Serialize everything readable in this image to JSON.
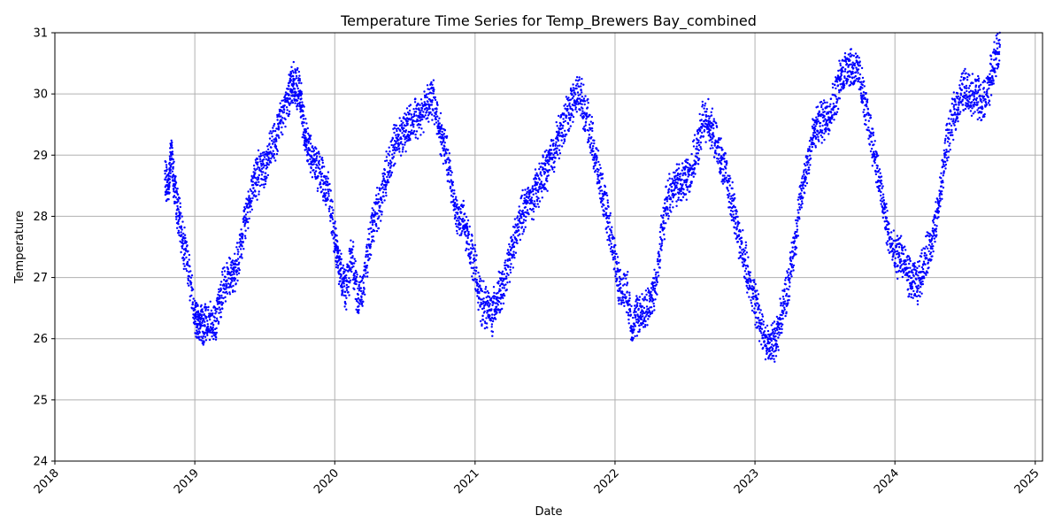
{
  "chart_data": {
    "type": "scatter",
    "title": "Temperature Time Series for Temp_Brewers Bay_combined",
    "xlabel": "Date",
    "ylabel": "Temperature",
    "x_range": [
      "2018-01-01",
      "2025-01-20"
    ],
    "ylim": [
      24,
      31
    ],
    "x_ticks": [
      "2018",
      "2019",
      "2020",
      "2021",
      "2022",
      "2023",
      "2024",
      "2025"
    ],
    "y_ticks": [
      24,
      25,
      26,
      27,
      28,
      29,
      30,
      31
    ],
    "grid": true,
    "marker_color": "#0000ff",
    "series": [
      {
        "x": [
          "2018-10-15",
          "2018-10-25",
          "2018-11-01",
          "2018-11-10",
          "2018-11-20",
          "2018-12-01",
          "2018-12-15",
          "2019-01-01",
          "2019-01-10",
          "2019-01-20",
          "2019-02-01",
          "2019-02-15",
          "2019-03-01",
          "2019-03-15",
          "2019-04-01",
          "2019-04-15",
          "2019-05-01",
          "2019-05-15",
          "2019-06-01",
          "2019-06-15",
          "2019-07-01",
          "2019-07-15",
          "2019-08-01",
          "2019-08-15",
          "2019-09-01",
          "2019-09-10",
          "2019-09-20",
          "2019-10-01",
          "2019-10-10",
          "2019-10-20",
          "2019-11-01",
          "2019-11-15",
          "2019-12-01",
          "2019-12-15",
          "2020-01-01",
          "2020-01-10",
          "2020-01-20",
          "2020-02-01",
          "2020-02-15",
          "2020-03-01",
          "2020-03-15",
          "2020-04-01",
          "2020-04-15",
          "2020-05-01",
          "2020-05-15",
          "2020-06-01",
          "2020-06-15",
          "2020-07-01",
          "2020-07-15",
          "2020-08-01",
          "2020-08-15",
          "2020-09-01",
          "2020-09-15",
          "2020-10-01",
          "2020-10-15",
          "2020-11-01",
          "2020-11-15",
          "2020-12-01",
          "2020-12-15",
          "2021-01-01",
          "2021-01-15",
          "2021-02-01",
          "2021-02-15",
          "2021-03-01",
          "2021-03-15",
          "2021-04-01",
          "2021-04-15",
          "2021-05-01",
          "2021-05-15",
          "2021-06-01",
          "2021-06-15",
          "2021-07-01",
          "2021-07-15",
          "2021-08-01",
          "2021-08-15",
          "2021-09-01",
          "2021-09-15",
          "2021-10-01",
          "2021-10-15",
          "2021-11-01",
          "2021-11-15",
          "2021-12-01",
          "2021-12-15",
          "2022-01-01",
          "2022-01-15",
          "2022-02-01",
          "2022-02-15",
          "2022-03-01",
          "2022-03-15",
          "2022-04-01",
          "2022-04-15",
          "2022-05-01",
          "2022-05-15",
          "2022-06-01",
          "2022-06-15",
          "2022-07-01",
          "2022-07-15",
          "2022-08-01",
          "2022-08-15",
          "2022-09-01",
          "2022-09-15",
          "2022-10-01",
          "2022-10-15",
          "2022-11-01",
          "2022-11-15",
          "2022-12-01",
          "2022-12-15",
          "2023-01-01",
          "2023-01-15",
          "2023-02-01",
          "2023-02-15",
          "2023-03-01",
          "2023-03-15",
          "2023-04-01",
          "2023-04-15",
          "2023-05-01",
          "2023-05-15",
          "2023-06-01",
          "2023-06-15",
          "2023-07-01",
          "2023-07-15",
          "2023-08-01",
          "2023-08-15",
          "2023-09-01",
          "2023-09-15",
          "2023-10-01",
          "2023-10-15",
          "2023-11-01",
          "2023-11-15",
          "2023-12-01",
          "2023-12-15",
          "2024-01-01",
          "2024-01-15",
          "2024-02-01",
          "2024-02-15",
          "2024-03-01",
          "2024-03-15",
          "2024-04-01",
          "2024-04-15",
          "2024-05-01",
          "2024-05-15",
          "2024-06-01",
          "2024-06-15",
          "2024-07-01",
          "2024-07-15",
          "2024-08-01",
          "2024-08-15",
          "2024-09-01",
          "2024-09-15",
          "2024-10-01"
        ],
        "y": [
          28.6,
          28.5,
          29.1,
          28.4,
          28.0,
          27.6,
          27.2,
          26.4,
          26.3,
          26.2,
          26.3,
          26.2,
          26.4,
          26.8,
          27.1,
          27.0,
          27.5,
          28.0,
          28.5,
          28.7,
          28.8,
          29.0,
          29.3,
          29.6,
          29.9,
          30.2,
          30.1,
          30.0,
          29.6,
          29.2,
          29.0,
          28.8,
          28.6,
          28.4,
          27.6,
          27.3,
          27.0,
          26.8,
          27.4,
          26.6,
          26.9,
          27.6,
          28.0,
          28.3,
          28.7,
          29.1,
          29.3,
          29.4,
          29.5,
          29.6,
          29.7,
          29.9,
          29.9,
          29.4,
          29.1,
          28.5,
          28.0,
          27.9,
          27.6,
          27.2,
          26.6,
          26.5,
          26.4,
          26.7,
          26.8,
          27.3,
          27.6,
          28.0,
          28.2,
          28.3,
          28.5,
          28.7,
          28.9,
          29.2,
          29.4,
          29.7,
          29.9,
          30.0,
          29.7,
          29.3,
          28.8,
          28.3,
          27.9,
          27.3,
          26.8,
          26.8,
          26.2,
          26.4,
          26.4,
          26.6,
          26.8,
          27.6,
          28.2,
          28.5,
          28.5,
          28.6,
          28.7,
          29.0,
          29.5,
          29.6,
          29.3,
          29.0,
          28.7,
          28.3,
          27.8,
          27.4,
          27.0,
          26.6,
          26.3,
          25.9,
          25.9,
          26.1,
          26.5,
          27.0,
          27.6,
          28.3,
          28.8,
          29.3,
          29.5,
          29.6,
          29.7,
          30.0,
          30.3,
          30.5,
          30.4,
          30.3,
          29.8,
          29.3,
          28.8,
          28.2,
          27.7,
          27.3,
          27.4,
          27.1,
          26.9,
          26.9,
          27.2,
          27.5,
          27.8,
          28.5,
          29.2,
          29.6,
          29.9,
          30.1,
          30.0,
          30.0,
          29.8,
          30.1,
          30.5,
          30.8
        ]
      }
    ]
  }
}
